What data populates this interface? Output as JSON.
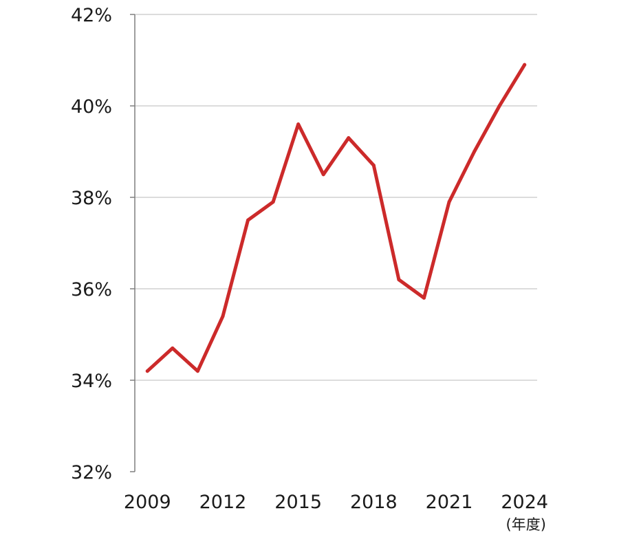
{
  "chart_data": {
    "type": "line",
    "title": "",
    "xlabel": "",
    "ylabel": "",
    "x_unit_label": "(年度)",
    "x": [
      2009,
      2010,
      2011,
      2012,
      2013,
      2014,
      2015,
      2016,
      2017,
      2018,
      2019,
      2020,
      2021,
      2022,
      2023,
      2024
    ],
    "x_ticks": [
      "2009",
      "2012",
      "2015",
      "2018",
      "2021",
      "2024"
    ],
    "y_ticks": [
      "32%",
      "34%",
      "36%",
      "38%",
      "40%",
      "42%"
    ],
    "ylim": [
      32,
      42
    ],
    "xlim": [
      2008.5,
      2024.5
    ],
    "grid": true,
    "legend": "none",
    "series": [
      {
        "values": [
          34.2,
          34.7,
          34.2,
          35.4,
          37.5,
          37.9,
          39.6,
          38.5,
          39.3,
          38.7,
          36.2,
          35.8,
          37.9,
          39.0,
          40.0,
          40.9
        ],
        "color": "#cc2a2a"
      }
    ],
    "colors": {
      "line": "#cc2a2a",
      "grid": "#d0d0d0",
      "axis": "#7f7f7f"
    }
  }
}
